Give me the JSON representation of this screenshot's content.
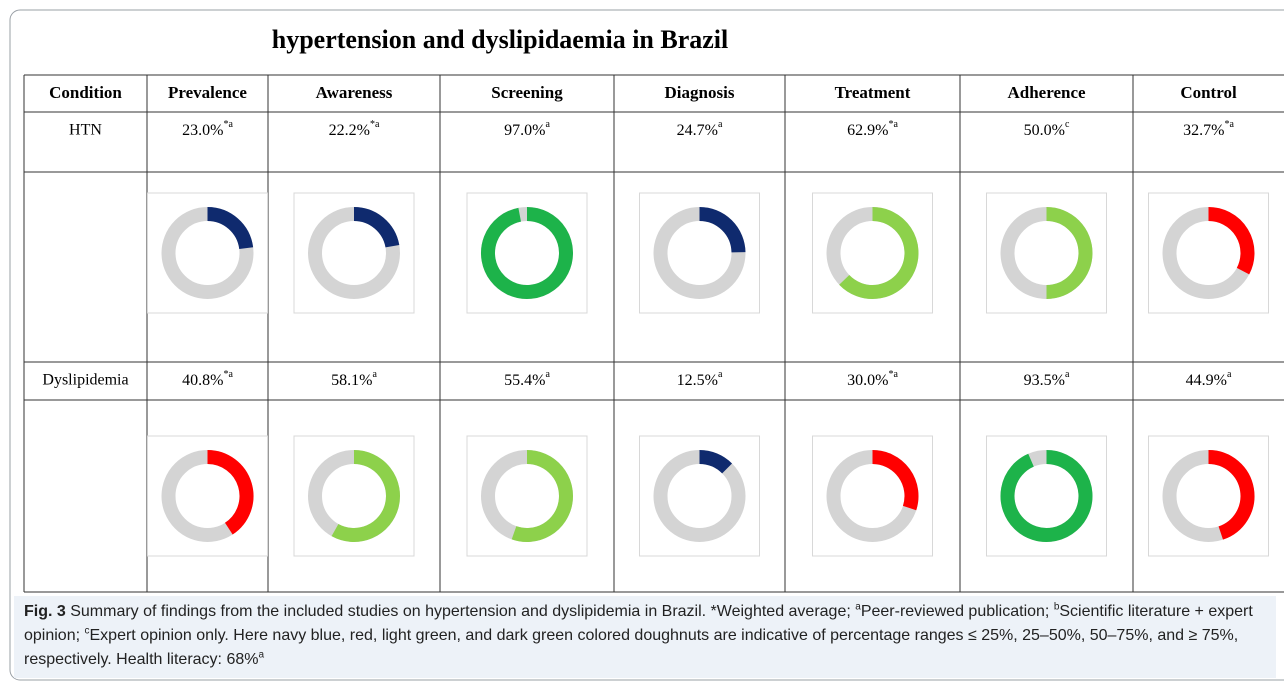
{
  "title": "hypertension and dyslipidaemia in Brazil",
  "table": {
    "columns": [
      "Condition",
      "Prevalence",
      "Awareness",
      "Screening",
      "Diagnosis",
      "Treatment",
      "Adherence",
      "Control"
    ],
    "rows": [
      {
        "condition": "HTN",
        "cells": [
          {
            "value": 23.0,
            "label": "23.0%",
            "note": "*a",
            "color": "#0f2a6e"
          },
          {
            "value": 22.2,
            "label": "22.2%",
            "note": "*a",
            "color": "#0f2a6e"
          },
          {
            "value": 97.0,
            "label": "97.0%",
            "note": "a",
            "color": "#1db34a"
          },
          {
            "value": 24.7,
            "label": "24.7%",
            "note": "a",
            "color": "#0f2a6e"
          },
          {
            "value": 62.9,
            "label": "62.9%",
            "note": "*a",
            "color": "#8dd14b"
          },
          {
            "value": 50.0,
            "label": "50.0%",
            "note": "c",
            "color": "#8dd14b"
          },
          {
            "value": 32.7,
            "label": "32.7%",
            "note": "*a",
            "color": "#ff0000"
          }
        ]
      },
      {
        "condition": "Dyslipidemia",
        "cells": [
          {
            "value": 40.8,
            "label": "40.8%",
            "note": "*a",
            "color": "#ff0000"
          },
          {
            "value": 58.1,
            "label": "58.1%",
            "note": "a",
            "color": "#8dd14b"
          },
          {
            "value": 55.4,
            "label": "55.4%",
            "note": "a",
            "color": "#8dd14b"
          },
          {
            "value": 12.5,
            "label": "12.5%",
            "note": "a",
            "color": "#0f2a6e"
          },
          {
            "value": 30.0,
            "label": "30.0%",
            "note": "*a",
            "color": "#ff0000"
          },
          {
            "value": 93.5,
            "label": "93.5%",
            "note": "a",
            "color": "#1db34a"
          },
          {
            "value": 44.9,
            "label": "44.9%",
            "note": "a",
            "color": "#ff0000"
          }
        ]
      }
    ]
  },
  "caption": {
    "label": "Fig. 3",
    "parts": [
      {
        "text": " Summary of findings from the included studies on hypertension and dyslipidemia in Brazil. *Weighted average; "
      },
      {
        "sup": "a"
      },
      {
        "text": "Peer-reviewed publication; "
      },
      {
        "sup": "b"
      },
      {
        "text": "Scientific literature + expert opinion; "
      },
      {
        "sup": "c"
      },
      {
        "text": "Expert opinion only. Here navy blue, red, light green, and dark green colored doughnuts are indicative of percentage ranges ≤ 25%, 25–50%, 50–75%, and ≥ 75%, respectively. Health literacy: 68%"
      },
      {
        "sup": "a"
      }
    ]
  }
}
